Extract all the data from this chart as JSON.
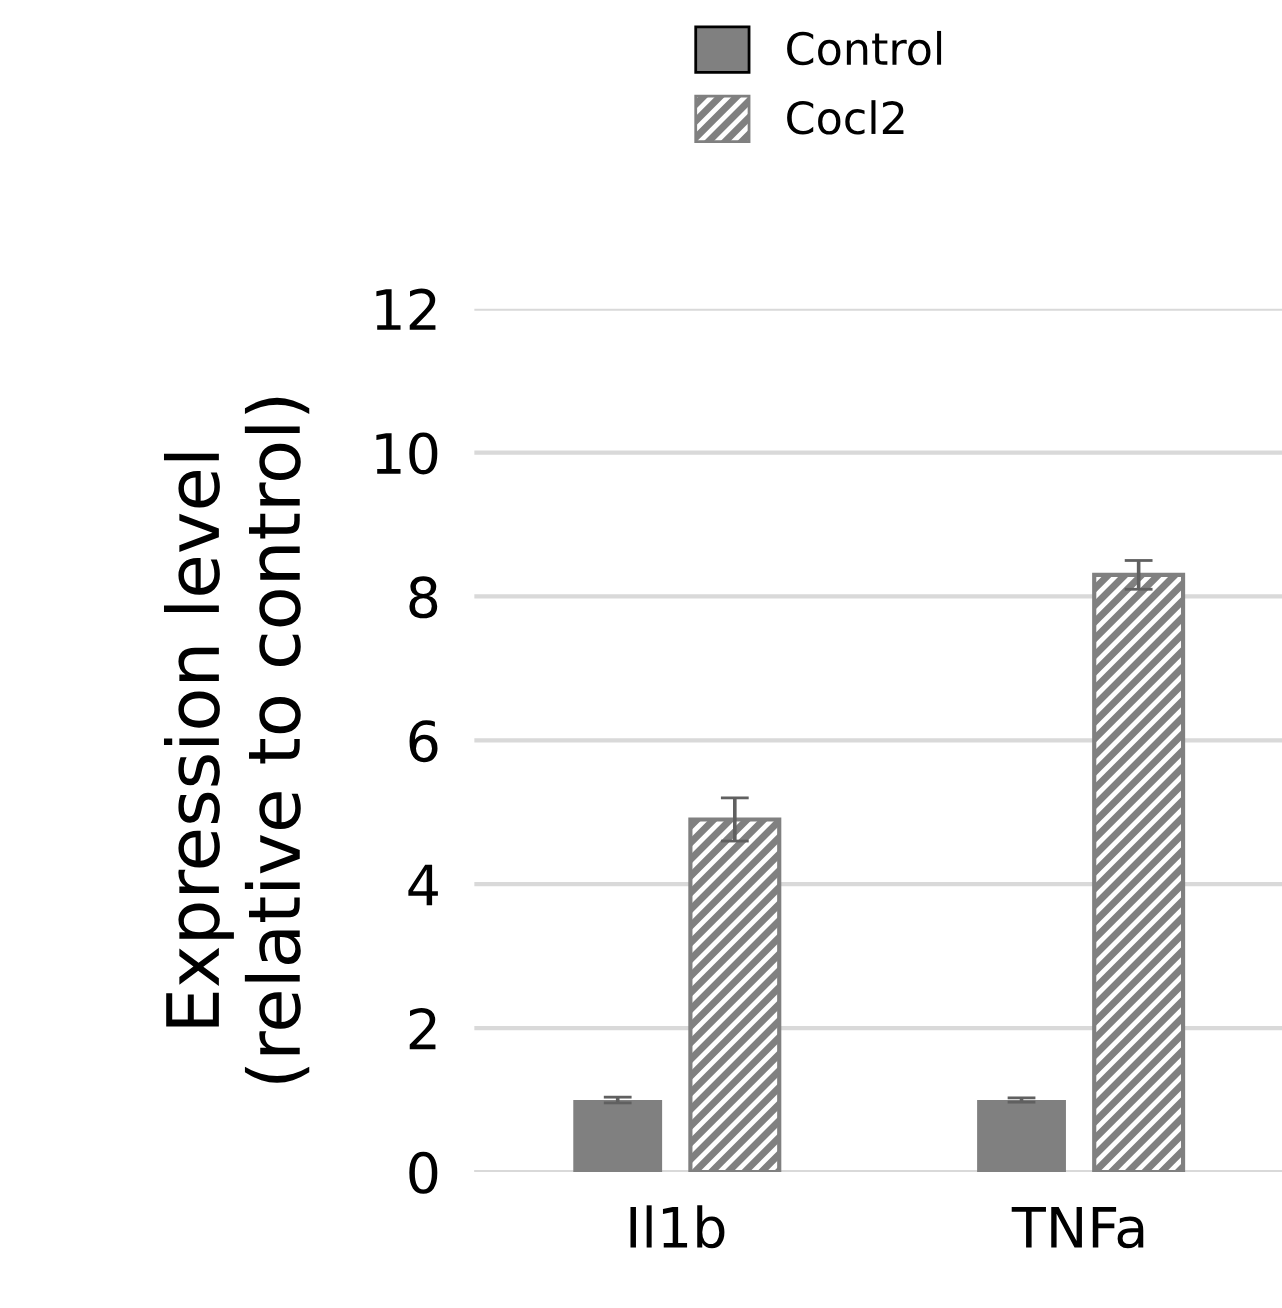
{
  "chart_data": {
    "type": "bar",
    "ylabel": "Expression level\n(relative to control)",
    "categories": [
      "Il1b",
      "TNFa"
    ],
    "series": [
      {
        "name": "Control",
        "color": "#808080",
        "values": [
          1.0,
          1.0
        ],
        "errors": [
          0.04,
          0.03
        ]
      },
      {
        "name": "Cocl2",
        "color": "#808080",
        "values": [
          4.9,
          8.3
        ],
        "errors": [
          0.3,
          0.2
        ]
      }
    ],
    "ylim": [
      0,
      12
    ],
    "yticks": [
      0,
      2,
      4,
      6,
      8,
      10,
      12
    ],
    "grid": "y",
    "legend": "top"
  }
}
